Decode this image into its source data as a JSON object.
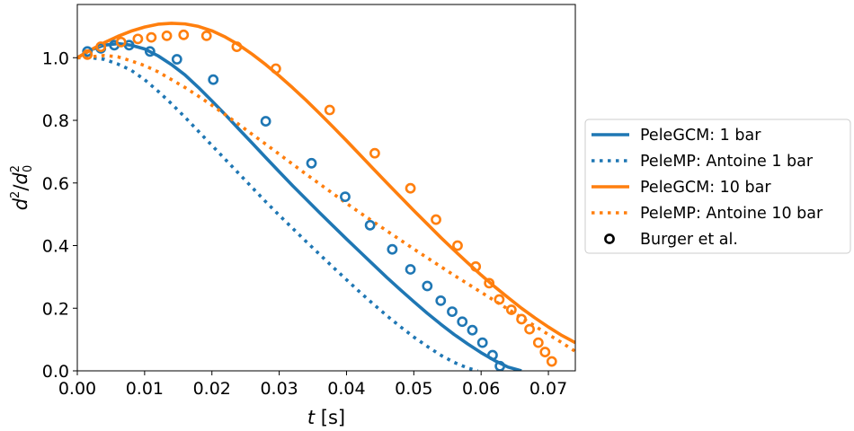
{
  "chart_data": {
    "type": "line",
    "xlabel": {
      "italic": "t",
      "rest": " [s]"
    },
    "ylabel": {
      "base": "d",
      "sup": "2",
      "slash": "/",
      "base2": "d",
      "sup2": "2",
      "sub2": "0"
    },
    "xlim": [
      0.0,
      0.074
    ],
    "ylim": [
      0.0,
      1.17
    ],
    "x_ticks": [
      "0.00",
      "0.01",
      "0.02",
      "0.03",
      "0.04",
      "0.05",
      "0.06",
      "0.07"
    ],
    "x_tick_values": [
      0.0,
      0.01,
      0.02,
      0.03,
      0.04,
      0.05,
      0.06,
      0.07
    ],
    "y_ticks": [
      "0.0",
      "0.2",
      "0.4",
      "0.6",
      "0.8",
      "1.0"
    ],
    "y_tick_values": [
      0.0,
      0.2,
      0.4,
      0.6,
      0.8,
      1.0
    ],
    "grid": false,
    "legend_position": "outside right",
    "colors": {
      "blue": "#1f77b4",
      "orange": "#ff7f0e",
      "black": "#000000"
    },
    "series": [
      {
        "name": "PeleGCM: 1 bar",
        "style": "solid",
        "color": "#1f77b4",
        "x": [
          0.0,
          0.002,
          0.004,
          0.006,
          0.008,
          0.01,
          0.012,
          0.014,
          0.016,
          0.018,
          0.02,
          0.022,
          0.024,
          0.026,
          0.028,
          0.03,
          0.032,
          0.034,
          0.036,
          0.038,
          0.04,
          0.042,
          0.044,
          0.046,
          0.048,
          0.05,
          0.052,
          0.054,
          0.056,
          0.058,
          0.06,
          0.062,
          0.064,
          0.066
        ],
        "y": [
          1.0,
          1.025,
          1.04,
          1.045,
          1.04,
          1.028,
          1.006,
          0.978,
          0.945,
          0.905,
          0.862,
          0.818,
          0.772,
          0.727,
          0.681,
          0.636,
          0.591,
          0.548,
          0.505,
          0.463,
          0.421,
          0.38,
          0.339,
          0.298,
          0.259,
          0.221,
          0.184,
          0.149,
          0.116,
          0.086,
          0.058,
          0.033,
          0.012,
          0.0
        ]
      },
      {
        "name": "PeleMP: Antoine 1 bar",
        "style": "dotted",
        "color": "#1f77b4",
        "x": [
          0.0,
          0.002,
          0.004,
          0.006,
          0.008,
          0.01,
          0.012,
          0.014,
          0.016,
          0.018,
          0.02,
          0.022,
          0.024,
          0.026,
          0.028,
          0.03,
          0.032,
          0.034,
          0.036,
          0.038,
          0.04,
          0.042,
          0.044,
          0.046,
          0.048,
          0.05,
          0.052,
          0.054,
          0.056,
          0.058,
          0.0595
        ],
        "y": [
          1.0,
          1.0,
          0.995,
          0.98,
          0.96,
          0.93,
          0.893,
          0.853,
          0.81,
          0.765,
          0.72,
          0.675,
          0.63,
          0.585,
          0.54,
          0.497,
          0.455,
          0.413,
          0.372,
          0.331,
          0.291,
          0.251,
          0.213,
          0.176,
          0.141,
          0.108,
          0.078,
          0.05,
          0.027,
          0.009,
          0.0
        ]
      },
      {
        "name": "PeleGCM: 10 bar",
        "style": "solid",
        "color": "#ff7f0e",
        "x": [
          0.0,
          0.002,
          0.004,
          0.006,
          0.008,
          0.01,
          0.012,
          0.014,
          0.016,
          0.018,
          0.02,
          0.022,
          0.024,
          0.026,
          0.028,
          0.03,
          0.032,
          0.034,
          0.036,
          0.038,
          0.04,
          0.042,
          0.044,
          0.046,
          0.048,
          0.05,
          0.052,
          0.054,
          0.056,
          0.058,
          0.06,
          0.062,
          0.064,
          0.066,
          0.068,
          0.07,
          0.072,
          0.074
        ],
        "y": [
          1.0,
          1.025,
          1.048,
          1.068,
          1.085,
          1.098,
          1.107,
          1.11,
          1.108,
          1.1,
          1.086,
          1.066,
          1.041,
          1.011,
          0.978,
          0.942,
          0.904,
          0.864,
          0.822,
          0.779,
          0.735,
          0.69,
          0.645,
          0.6,
          0.556,
          0.512,
          0.469,
          0.426,
          0.385,
          0.345,
          0.306,
          0.269,
          0.234,
          0.2,
          0.169,
          0.14,
          0.113,
          0.09
        ]
      },
      {
        "name": "PeleMP: Antoine 10 bar",
        "style": "dotted",
        "color": "#ff7f0e",
        "x": [
          0.0,
          0.002,
          0.004,
          0.006,
          0.008,
          0.01,
          0.012,
          0.014,
          0.016,
          0.018,
          0.02,
          0.022,
          0.024,
          0.026,
          0.028,
          0.03,
          0.032,
          0.034,
          0.036,
          0.038,
          0.04,
          0.042,
          0.044,
          0.046,
          0.048,
          0.05,
          0.052,
          0.054,
          0.056,
          0.058,
          0.06,
          0.062,
          0.064,
          0.066,
          0.068,
          0.07,
          0.072,
          0.074
        ],
        "y": [
          1.0,
          1.003,
          1.007,
          1.003,
          0.99,
          0.975,
          0.955,
          0.93,
          0.905,
          0.877,
          0.848,
          0.818,
          0.787,
          0.755,
          0.724,
          0.692,
          0.66,
          0.628,
          0.597,
          0.566,
          0.535,
          0.505,
          0.476,
          0.447,
          0.418,
          0.389,
          0.361,
          0.333,
          0.305,
          0.278,
          0.251,
          0.224,
          0.197,
          0.17,
          0.143,
          0.116,
          0.09,
          0.062
        ]
      },
      {
        "name": "Burger et al.",
        "style": "markers",
        "color": "#1f77b4",
        "legend": false,
        "x": [
          0.0015,
          0.0035,
          0.0055,
          0.0077,
          0.0108,
          0.0148,
          0.0202,
          0.028,
          0.0348,
          0.0398,
          0.0435,
          0.0468,
          0.0495,
          0.052,
          0.054,
          0.0557,
          0.0572,
          0.0587,
          0.0602,
          0.0617,
          0.0628
        ],
        "y": [
          1.02,
          1.03,
          1.04,
          1.04,
          1.02,
          0.995,
          0.93,
          0.797,
          0.663,
          0.556,
          0.465,
          0.388,
          0.324,
          0.271,
          0.224,
          0.189,
          0.157,
          0.13,
          0.09,
          0.05,
          0.015
        ]
      },
      {
        "name": "Burger et al.",
        "style": "markers",
        "color": "#ff7f0e",
        "legend": false,
        "x": [
          0.0015,
          0.0035,
          0.0065,
          0.009,
          0.011,
          0.0133,
          0.0158,
          0.0192,
          0.0237,
          0.0295,
          0.0375,
          0.0442,
          0.0495,
          0.0533,
          0.0565,
          0.0592,
          0.0612,
          0.0627,
          0.0645,
          0.066,
          0.0672,
          0.0685,
          0.0695,
          0.0705
        ],
        "y": [
          1.01,
          1.035,
          1.05,
          1.06,
          1.065,
          1.07,
          1.073,
          1.07,
          1.035,
          0.965,
          0.833,
          0.695,
          0.583,
          0.483,
          0.4,
          0.333,
          0.28,
          0.228,
          0.195,
          0.165,
          0.133,
          0.09,
          0.06,
          0.03
        ]
      }
    ],
    "legend": [
      {
        "label": "PeleGCM: 1 bar",
        "kind": "line",
        "style": "solid",
        "color": "#1f77b4"
      },
      {
        "label": "PeleMP: Antoine 1 bar",
        "kind": "line",
        "style": "dotted",
        "color": "#1f77b4"
      },
      {
        "label": "PeleGCM: 10 bar",
        "kind": "line",
        "style": "solid",
        "color": "#ff7f0e"
      },
      {
        "label": "PeleMP: Antoine 10 bar",
        "kind": "line",
        "style": "dotted",
        "color": "#ff7f0e"
      },
      {
        "label": "Burger et al.",
        "kind": "marker",
        "color": "#000000"
      }
    ]
  }
}
